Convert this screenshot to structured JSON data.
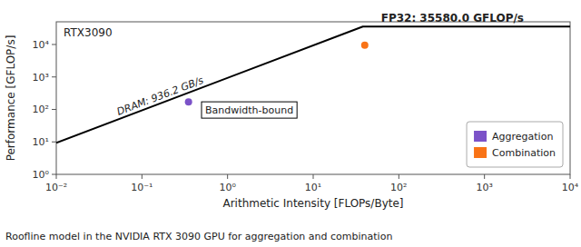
{
  "chart_data": {
    "type": "line",
    "title": "RTX3090",
    "xlabel": "Arithmetic Intensity [FLOPs/Byte]",
    "ylabel": "Performance [GFLOP/s]",
    "caption": "Roofline model in the NVIDIA RTX 3090 GPU for aggregation and combination",
    "annotations": [
      "DRAM: 936.2 GB/s",
      "Bandwidth-bound",
      "FP32: 35580.0 GFLOP/s"
    ],
    "log": true,
    "grid": false,
    "legend": "lower right",
    "xlim": [
      0.01,
      10000
    ],
    "ylim": [
      1.0,
      50000
    ],
    "xticks": [
      {
        "value": 0.01,
        "label": "10⁻²"
      },
      {
        "value": 0.1,
        "label": "10⁻¹"
      },
      {
        "value": 1,
        "label": "10⁰"
      },
      {
        "value": 10,
        "label": "10¹"
      },
      {
        "value": 100,
        "label": "10²"
      },
      {
        "value": 1000,
        "label": "10³"
      },
      {
        "value": 10000,
        "label": "10⁴"
      }
    ],
    "yticks": [
      {
        "value": 1,
        "label": "10⁰"
      },
      {
        "value": 10,
        "label": "10¹"
      },
      {
        "value": 100,
        "label": "10²"
      },
      {
        "value": 1000,
        "label": "10³"
      },
      {
        "value": 10000,
        "label": "10⁴"
      }
    ],
    "series": [
      {
        "type": "line",
        "color": "#000000",
        "x": [
          0.01,
          38.0046998505,
          10000
        ],
        "values": [
          9.362,
          35580.0,
          35580.0
        ]
      },
      {
        "type": "scatter",
        "name": "Aggregation",
        "color": "#7B52C8",
        "x": [
          0.35
        ],
        "values": [
          170
        ]
      },
      {
        "type": "scatter",
        "name": "Combination",
        "color": "#F97316",
        "x": [
          40
        ],
        "values": [
          9500
        ]
      }
    ]
  }
}
